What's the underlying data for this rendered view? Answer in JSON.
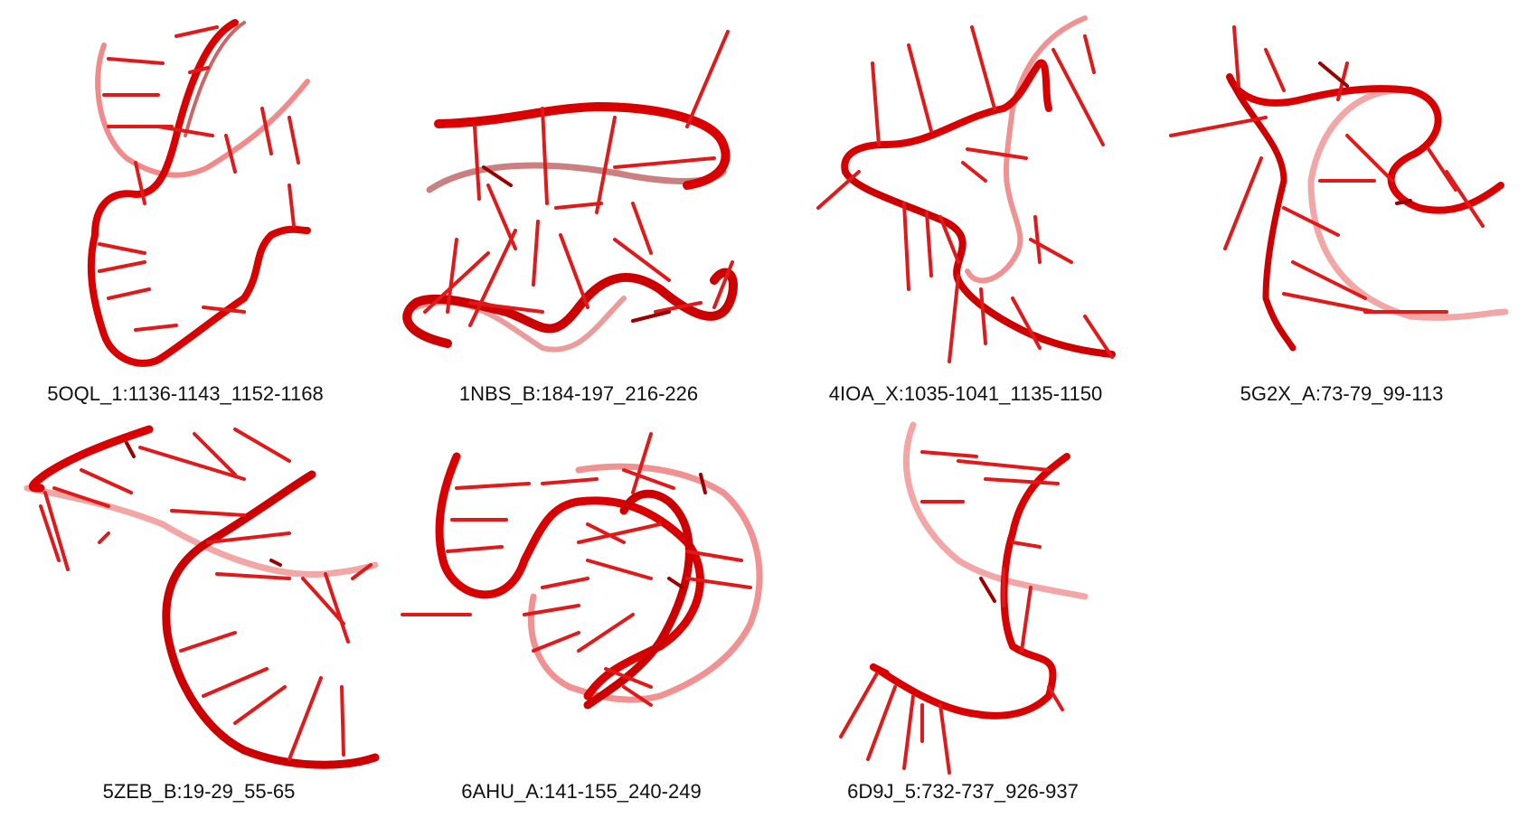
{
  "colors": {
    "backbone": "#e00000",
    "backbone_shadow": "#a00000",
    "backbone_faded": "#ee6a6a",
    "base": "#e21e1e",
    "base_dark": "#9a0000",
    "caption": "#111111"
  },
  "panels": [
    {
      "label": "5OQL_1:1136-1143_1152-1168"
    },
    {
      "label": "1NBS_B:184-197_216-226"
    },
    {
      "label": "4IOA_X:1035-1041_1135-1150"
    },
    {
      "label": "5G2X_A:73-79_99-113"
    },
    {
      "label": "5ZEB_B:19-29_55-65"
    },
    {
      "label": "6AHU_A:141-155_240-249"
    },
    {
      "label": "6D9J_5:732-737_926-937"
    }
  ]
}
